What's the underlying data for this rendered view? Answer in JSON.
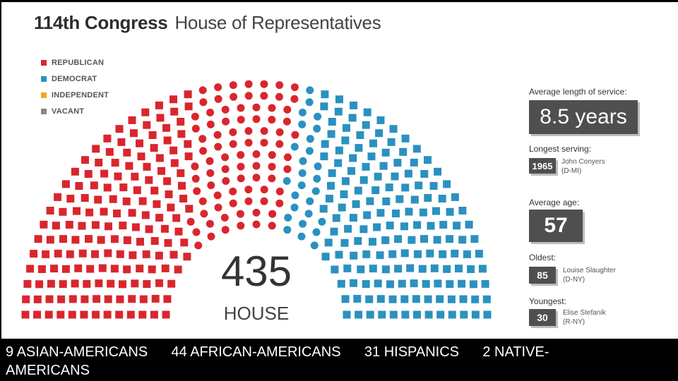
{
  "header": {
    "title_bold": "114th Congress",
    "title_light": "House of Representatives"
  },
  "legend": [
    {
      "label": "REPUBLICAN",
      "color": "#d9262e"
    },
    {
      "label": "DEMOCRAT",
      "color": "#2b91bf"
    },
    {
      "label": "INDEPENDENT",
      "color": "#f2a81d"
    },
    {
      "label": "VACANT",
      "color": "#888888"
    }
  ],
  "chart_data": {
    "type": "parliament",
    "title": "114th Congress House of Representatives",
    "total": "435",
    "total_label": "HOUSE",
    "series": [
      {
        "name": "REPUBLICAN",
        "value": 247,
        "color": "#d9262e"
      },
      {
        "name": "DEMOCRAT",
        "value": 188,
        "color": "#2b91bf"
      },
      {
        "name": "INDEPENDENT",
        "value": 0,
        "color": "#f2a81d"
      },
      {
        "name": "VACANT",
        "value": 0,
        "color": "#888888"
      }
    ]
  },
  "stats": {
    "avg_service_label": "Average length of service:",
    "avg_service_value": "8.5 years",
    "longest_label": "Longest serving:",
    "longest_year": "1965",
    "longest_name": "John Conyers",
    "longest_party": "(D-MI)",
    "avg_age_label": "Average age:",
    "avg_age_value": "57",
    "oldest_label": "Oldest:",
    "oldest_age": "85",
    "oldest_name": "Louise Slaughter",
    "oldest_party": "(D-NY)",
    "youngest_label": "Youngest:",
    "youngest_age": "30",
    "youngest_name": "Elise Stefanik",
    "youngest_party": "(R-NY)"
  },
  "footer": {
    "text": "9 ASIAN-AMERICANS      44 AFRICAN-AMERICANS      31 HISPANICS      2 NATIVE-\nAMERICANS"
  }
}
